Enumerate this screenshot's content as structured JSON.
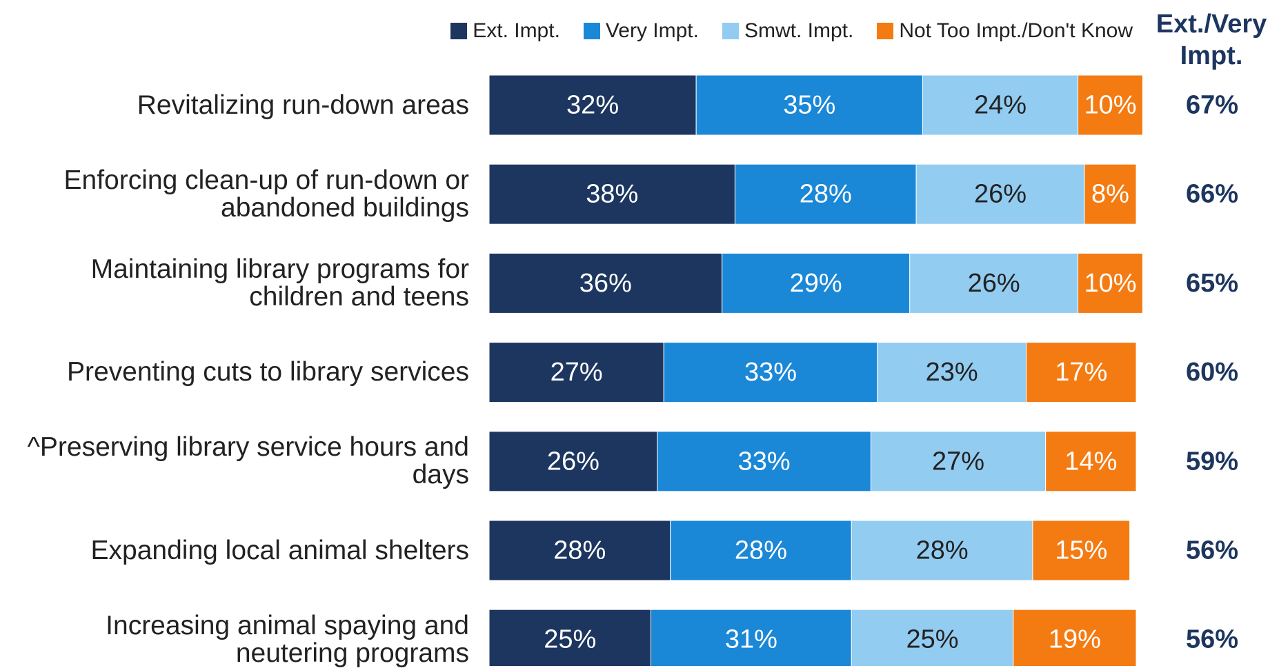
{
  "chart_data": {
    "type": "stacked_bar_horizontal",
    "categories": [
      "Revitalizing run-down areas",
      "Enforcing clean-up of run-down or abandoned buildings",
      "Maintaining library programs for children and teens",
      "Preventing cuts to library services",
      "^Preserving library service hours and days",
      "Expanding local animal shelters",
      "Increasing animal spaying and neutering programs"
    ],
    "series": [
      {
        "name": "Ext. Impt.",
        "color": "#1d365f",
        "values": [
          32,
          38,
          36,
          27,
          26,
          28,
          25
        ],
        "value_labels": [
          "32%",
          "38%",
          "36%",
          "27%",
          "26%",
          "28%",
          "25%"
        ]
      },
      {
        "name": "Very Impt.",
        "color": "#1a87d7",
        "values": [
          35,
          28,
          29,
          33,
          33,
          28,
          31
        ],
        "value_labels": [
          "35%",
          "28%",
          "29%",
          "33%",
          "33%",
          "28%",
          "31%"
        ]
      },
      {
        "name": "Smwt. Impt.",
        "color": "#93ccf1",
        "values": [
          24,
          26,
          26,
          23,
          27,
          28,
          25
        ],
        "value_labels": [
          "24%",
          "26%",
          "26%",
          "23%",
          "27%",
          "28%",
          "25%"
        ]
      },
      {
        "name": "Not Too Impt./Don't Know",
        "color": "#f47b12",
        "values": [
          10,
          8,
          10,
          17,
          14,
          15,
          19
        ],
        "value_labels": [
          "10%",
          "8%",
          "10%",
          "17%",
          "14%",
          "15%",
          "19%"
        ]
      }
    ],
    "totals": {
      "title": "Ext./Very Impt.",
      "color": "#1d365f",
      "values": [
        67,
        66,
        65,
        60,
        59,
        56,
        56
      ],
      "value_labels": [
        "67%",
        "66%",
        "65%",
        "60%",
        "59%",
        "56%",
        "56%"
      ]
    },
    "xlim": [
      0,
      100
    ],
    "legend": "top"
  }
}
